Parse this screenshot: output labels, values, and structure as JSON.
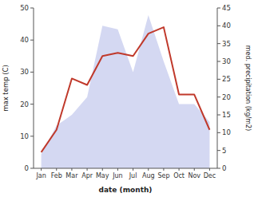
{
  "chart_data": {
    "type": "line",
    "categories": [
      "Jan",
      "Feb",
      "Mar",
      "Apr",
      "May",
      "Jun",
      "Jul",
      "Aug",
      "Sep",
      "Oct",
      "Nov",
      "Dec"
    ],
    "xlabel": "date (month)",
    "ylabel": "max temp (C)",
    "y2label": "med. precipitation (kg/m2)",
    "ylim": [
      0,
      50
    ],
    "yticks": [
      0,
      10,
      20,
      30,
      40,
      50
    ],
    "y2lim": [
      0,
      45
    ],
    "y2ticks": [
      0,
      5,
      10,
      15,
      20,
      25,
      30,
      35,
      40,
      45
    ],
    "series": [
      {
        "type": "area",
        "color": "#b0b8e8",
        "axis": "y2",
        "values": [
          4,
          12,
          15,
          20,
          40,
          39,
          27,
          43,
          30,
          18,
          18,
          13
        ]
      },
      {
        "type": "line",
        "color": "#c0392b",
        "values": [
          5,
          12,
          28,
          26,
          35,
          36,
          35,
          42,
          44,
          23,
          23,
          12
        ]
      }
    ]
  }
}
